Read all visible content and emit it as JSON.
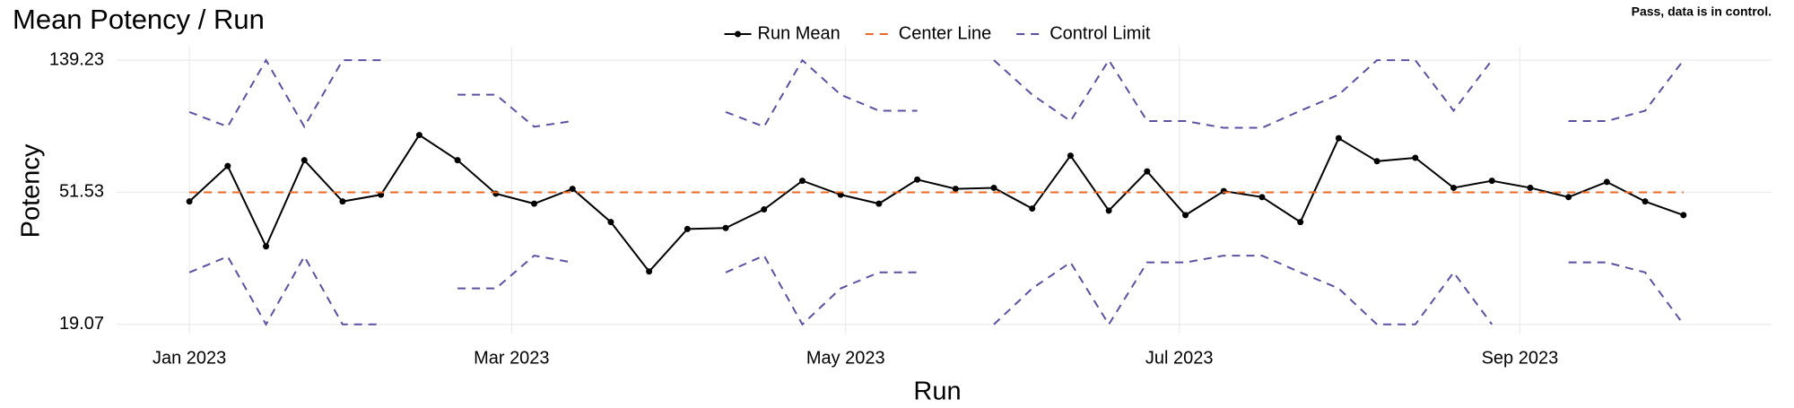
{
  "chart_data": {
    "type": "line",
    "title": "Mean Potency / Run",
    "note": "Pass, data is in control.",
    "x_label": "Run",
    "y_label": "Potency",
    "log_y": true,
    "grid": true,
    "x": [
      1,
      2,
      3,
      4,
      5,
      6,
      7,
      8,
      9,
      10,
      11,
      12,
      13,
      14,
      15,
      16,
      17,
      18,
      19,
      20,
      21,
      22,
      23,
      24,
      25,
      26,
      27,
      28,
      29,
      30,
      31,
      32,
      33,
      34,
      35,
      36,
      37,
      38,
      39,
      40
    ],
    "xlim": [
      -0.9,
      42.3
    ],
    "xticks": [
      {
        "value": 1,
        "label": "Jan 2023"
      },
      {
        "value": 9.41,
        "label": "Mar 2023"
      },
      {
        "value": 18.13,
        "label": "May 2023"
      },
      {
        "value": 26.84,
        "label": "Jul 2023"
      },
      {
        "value": 35.73,
        "label": "Sep 2023"
      }
    ],
    "ylim": [
      17.8,
      154.2
    ],
    "yticks": [
      19.07,
      51.53,
      139.23
    ],
    "series": [
      {
        "name": "Run Mean",
        "color": "#000000",
        "style": "solid",
        "markers": true,
        "values": [
          48.1,
          62.8,
          34.3,
          65.6,
          48.1,
          50.6,
          79.3,
          65.6,
          51.0,
          47.3,
          52.9,
          41.2,
          28.4,
          39.1,
          39.4,
          45.3,
          56.2,
          50.6,
          47.3,
          56.7,
          52.9,
          53.3,
          45.6,
          67.9,
          44.9,
          60.3,
          43.4,
          52.0,
          49.7,
          41.2,
          77.4,
          65.1,
          66.8,
          53.3,
          56.2,
          53.3,
          49.7,
          55.7,
          48.1,
          43.4
        ]
      },
      {
        "name": "Center Line",
        "color": "#e8692a",
        "style": "dashed",
        "markers": false,
        "values": [
          51.53,
          51.53,
          51.53,
          51.53,
          51.53,
          51.53,
          51.53,
          51.53,
          51.53,
          51.53,
          51.53,
          51.53,
          51.53,
          51.53,
          51.53,
          51.53,
          51.53,
          51.53,
          51.53,
          51.53,
          51.53,
          51.53,
          51.53,
          51.53,
          51.53,
          51.53,
          51.53,
          51.53,
          51.53,
          51.53,
          51.53,
          51.53,
          51.53,
          51.53,
          51.53,
          51.53,
          51.53,
          51.53,
          51.53,
          51.53
        ]
      },
      {
        "name": "Control Limit",
        "color": "#5e4fa2",
        "style": "dashed",
        "markers": false,
        "values": [
          94.3,
          84.4,
          139.23,
          84.4,
          139.23,
          139.23,
          null,
          107.4,
          107.4,
          84.4,
          88.1,
          null,
          null,
          null,
          94.3,
          84.4,
          139.23,
          107.4,
          95.2,
          95.2,
          null,
          139.23,
          107.4,
          88.1,
          139.23,
          88.1,
          88.1,
          83.7,
          83.7,
          95.2,
          107.4,
          139.23,
          139.23,
          95.2,
          139.23,
          null,
          88.1,
          88.1,
          95.2,
          139.23
        ]
      },
      {
        "name": "Control Limit",
        "color": "#5e4fa2",
        "style": "dashed",
        "markers": false,
        "values": [
          28.2,
          31.8,
          19.07,
          31.8,
          19.07,
          19.07,
          null,
          25.0,
          25.0,
          32.0,
          30.4,
          null,
          null,
          null,
          28.2,
          32.0,
          19.07,
          25.0,
          28.2,
          28.2,
          null,
          19.07,
          25.0,
          30.4,
          19.07,
          30.4,
          30.4,
          32.0,
          32.0,
          28.2,
          25.0,
          19.07,
          19.07,
          28.2,
          19.07,
          null,
          30.4,
          30.4,
          28.2,
          19.07
        ]
      }
    ]
  }
}
